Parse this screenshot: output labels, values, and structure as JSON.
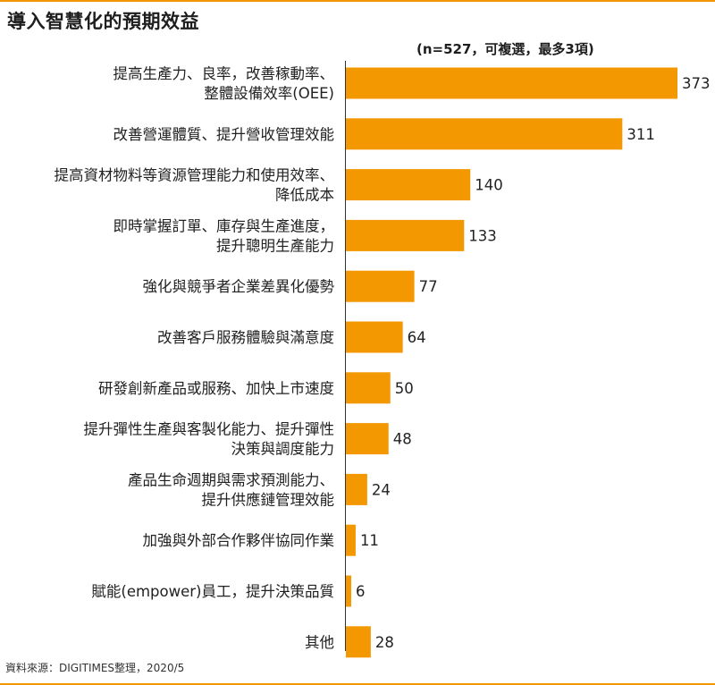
{
  "title": "導入智慧化的預期效益",
  "note": "(n=527，可複選，最多3項)",
  "source": "資料來源：DIGITIMES整理，2020/5",
  "colors": {
    "accent": "#f39800",
    "axis": "#333333",
    "text": "#222222"
  },
  "chart_data": {
    "type": "bar",
    "orientation": "horizontal",
    "title": "導入智慧化的預期效益",
    "subtitle": "(n=527，可複選，最多3項)",
    "categories": [
      [
        "提高生產力、良率，改善稼動率、",
        "整體設備效率(OEE)"
      ],
      [
        "改善營運體質、提升營收管理效能"
      ],
      [
        "提高資材物料等資源管理能力和使用效率、",
        "降低成本"
      ],
      [
        "即時掌握訂單、庫存與生產進度，",
        "提升聰明生產能力"
      ],
      [
        "強化與競爭者企業差異化優勢"
      ],
      [
        "改善客戶服務體驗與滿意度"
      ],
      [
        "研發創新產品或服務、加快上市速度"
      ],
      [
        "提升彈性生產與客製化能力、提升彈性",
        "決策與調度能力"
      ],
      [
        "產品生命週期與需求預測能力、",
        "提升供應鏈管理效能"
      ],
      [
        "加強與外部合作夥伴協同作業"
      ],
      [
        "賦能(empower)員工，提升決策品質"
      ],
      [
        "其他"
      ]
    ],
    "values": [
      373,
      311,
      140,
      133,
      77,
      64,
      50,
      48,
      24,
      11,
      6,
      28
    ],
    "xlabel": "",
    "ylabel": "",
    "xlim": [
      0,
      373
    ],
    "grid": false,
    "legend": "none"
  }
}
